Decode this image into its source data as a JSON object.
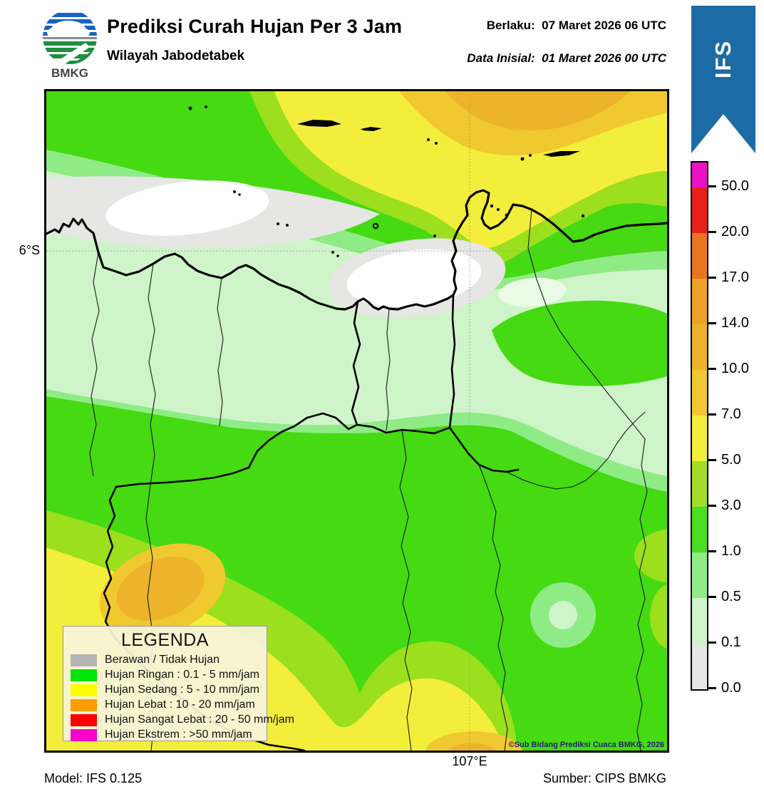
{
  "header": {
    "title": "Prediksi Curah Hujan Per 3 Jam",
    "subtitle": "Wilayah Jabodetabek",
    "valid_label": "Berlaku:",
    "valid_value": "07 Maret 2026 06 UTC",
    "init_label": "Data Inisial:",
    "init_value": "01 Maret 2026 00 UTC",
    "logo_text": "BMKG",
    "ribbon_text": "IFS",
    "ribbon_color": "#1c6ba5"
  },
  "colorbar": {
    "tick_labels": [
      "50.0",
      "20.0",
      "17.0",
      "14.0",
      "10.0",
      "7.0",
      "5.0",
      "3.0",
      "1.0",
      "0.5",
      "0.1",
      "0.0"
    ],
    "segment_colors_top_to_bottom": [
      "#ea12c4",
      "#e92019",
      "#e97420",
      "#eda226",
      "#ecb32b",
      "#f0c82f",
      "#f3ee3b",
      "#a4dd28",
      "#4ade22",
      "#8feb86",
      "#cff4c9",
      "#e6e6e4"
    ],
    "units": "mm/jam"
  },
  "legend": {
    "title": "LEGENDA",
    "items": [
      {
        "label": "Berawan / Tidak Hujan",
        "color": "#b4b4b4"
      },
      {
        "label": "Hujan Ringan : 0.1 - 5 mm/jam",
        "color": "#00e408"
      },
      {
        "label": "Hujan Sedang : 5 - 10 mm/jam",
        "color": "#fdfd00"
      },
      {
        "label": "Hujan Lebat : 10 - 20 mm/jam",
        "color": "#ff9d00"
      },
      {
        "label": "Hujan Sangat Lebat : 20 - 50 mm/jam",
        "color": "#fc0000"
      },
      {
        "label": "Hujan Ekstrem : >50 mm/jam",
        "color": "#f800c8"
      }
    ]
  },
  "map": {
    "lat_label": "6°S",
    "lon_label": "107°E",
    "copyright": "©Sub Bidang Prediksi Cuaca BMKG, 2026",
    "fill_levels_mm_per_jam": [
      "0.0",
      "0.1",
      "0.5",
      "1.0",
      "3.0",
      "5.0",
      "7.0",
      "10.0",
      "14.0",
      "17.0",
      "20.0",
      "50.0"
    ],
    "fill_colors": {
      "white_0": "#ffffff",
      "gray_0_01": "#e6e6e4",
      "pale_01_05": "#cff4c9",
      "light_05_1": "#8feb86",
      "green_1_3": "#45da12",
      "yg_3_5": "#9bdf1d",
      "yellow_5_7": "#f3ee3b",
      "gold_7_10": "#f0c82f",
      "gold_10_14": "#ecb32b"
    }
  },
  "footer": {
    "model": "Model: IFS 0.125",
    "source": "Sumber: CIPS BMKG"
  }
}
